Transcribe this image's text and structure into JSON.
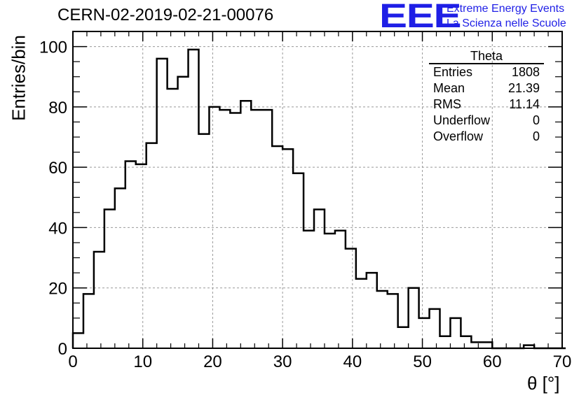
{
  "header": {
    "run_title": "CERN-02-2019-02-21-00076",
    "logo_text": "EEE",
    "logo_line1": "Extreme Energy Events",
    "logo_line2": "La Scienza nelle Scuole",
    "logo_color": "#1f1fe6"
  },
  "stats_box": {
    "title": "Theta",
    "rows": [
      {
        "label": "Entries",
        "value": "1808"
      },
      {
        "label": "Mean",
        "value": "21.39"
      },
      {
        "label": "RMS",
        "value": "11.14"
      },
      {
        "label": "Underflow",
        "value": "0"
      },
      {
        "label": "Overflow",
        "value": "0"
      }
    ]
  },
  "chart_data": {
    "type": "bar",
    "style": "step-histogram",
    "title": "CERN-02-2019-02-21-00076",
    "xlabel": "θ [°]",
    "ylabel": "Entries/bin",
    "xlim": [
      0,
      70
    ],
    "ylim": [
      0,
      105
    ],
    "grid": true,
    "bin_width": 1.5,
    "bin_edges_start": 0,
    "values": [
      5,
      18,
      32,
      46,
      53,
      62,
      61,
      68,
      96,
      86,
      90,
      99,
      71,
      80,
      79,
      78,
      82,
      79,
      79,
      67,
      66,
      58,
      39,
      46,
      38,
      39,
      33,
      23,
      25,
      19,
      18,
      7,
      20,
      10,
      13,
      4,
      10,
      4,
      2,
      2,
      0,
      0,
      0,
      1,
      0,
      0,
      0
    ],
    "xticks": [
      0,
      10,
      20,
      30,
      40,
      50,
      60,
      70
    ],
    "yticks": [
      0,
      20,
      40,
      60,
      80,
      100
    ],
    "line_color": "#000000"
  }
}
